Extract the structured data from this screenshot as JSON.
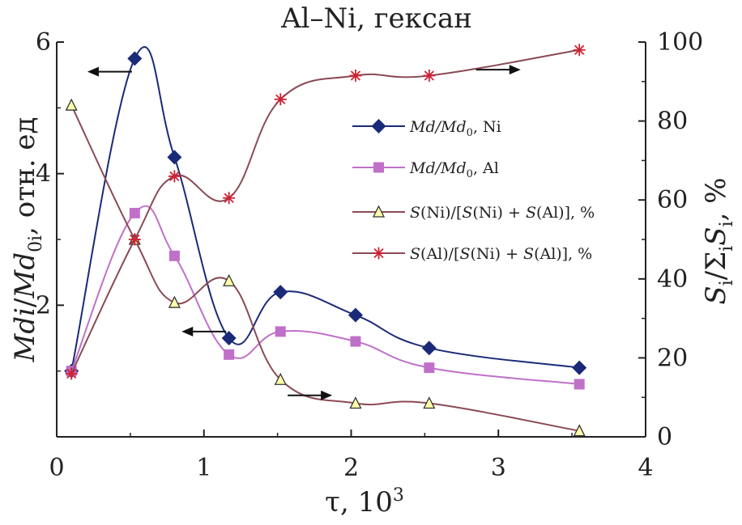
{
  "chart_data": {
    "type": "line",
    "title": "Al–Ni, гексан",
    "x_axis": {
      "label": "τ, 10",
      "label_sup": "3",
      "range": [
        0,
        4
      ],
      "ticks": [
        "0",
        "1",
        "2",
        "3",
        "4"
      ]
    },
    "y_left": {
      "label_parts": [
        "Mdi",
        "/",
        "Md",
        "0i",
        ", отн. ед"
      ],
      "range": [
        0,
        6
      ],
      "ticks": [
        "2",
        "4",
        "6"
      ]
    },
    "y_right": {
      "label_parts": [
        "S",
        "i",
        "/Σ",
        "i",
        "S",
        "i",
        ", %"
      ],
      "range": [
        0,
        100
      ],
      "ticks": [
        "0",
        "20",
        "40",
        "60",
        "80",
        "100"
      ]
    },
    "grid": false,
    "legend_position": "right",
    "series": [
      {
        "legend": [
          "Md",
          "/",
          "Md",
          "0",
          ", Ni"
        ],
        "axis": "left",
        "marker": "diamond",
        "color": "#1a2a78",
        "x": [
          0.1,
          0.53,
          0.8,
          1.17,
          1.52,
          2.03,
          2.53,
          3.55
        ],
        "y": [
          1.0,
          5.75,
          4.25,
          1.5,
          2.2,
          1.85,
          1.35,
          1.05
        ]
      },
      {
        "legend": [
          "Md",
          "/",
          "Md",
          "0",
          ", Al"
        ],
        "axis": "left",
        "marker": "square",
        "color": "#c070c8",
        "x": [
          0.1,
          0.53,
          0.8,
          1.17,
          1.52,
          2.03,
          2.53,
          3.55
        ],
        "y": [
          1.0,
          3.4,
          2.75,
          1.25,
          1.6,
          1.45,
          1.05,
          0.8
        ]
      },
      {
        "legend": [
          "S",
          "(Ni)/[",
          "S",
          "(Ni) + ",
          "S",
          "(Al)], %"
        ],
        "axis": "right",
        "marker": "triangle",
        "color": "#8a4a55",
        "x": [
          0.1,
          0.53,
          0.8,
          1.17,
          1.52,
          2.03,
          2.53,
          3.55
        ],
        "y": [
          84,
          50,
          34,
          39.5,
          14.5,
          8.5,
          8.5,
          1.5
        ]
      },
      {
        "legend": [
          "S",
          "(Al)/[",
          "S",
          "(Ni) + ",
          "S",
          "(Al)], %"
        ],
        "axis": "right",
        "marker": "asterisk",
        "color": "#8a4a55",
        "marker_color": "#cc2233",
        "x": [
          0.1,
          0.53,
          0.8,
          1.17,
          1.52,
          2.03,
          2.53,
          3.55
        ],
        "y": [
          16,
          50,
          66,
          60.5,
          85.5,
          91.5,
          91.5,
          98
        ]
      }
    ],
    "arrows": [
      {
        "direction": "left",
        "axis": "left",
        "x": 0.36,
        "y": 5.55
      },
      {
        "direction": "left",
        "axis": "left",
        "x": 1.0,
        "y": 1.6
      },
      {
        "direction": "right",
        "axis": "right",
        "x": 1.72,
        "y": 10.5
      },
      {
        "direction": "right",
        "axis": "right",
        "x": 3.0,
        "y": 93
      }
    ]
  }
}
